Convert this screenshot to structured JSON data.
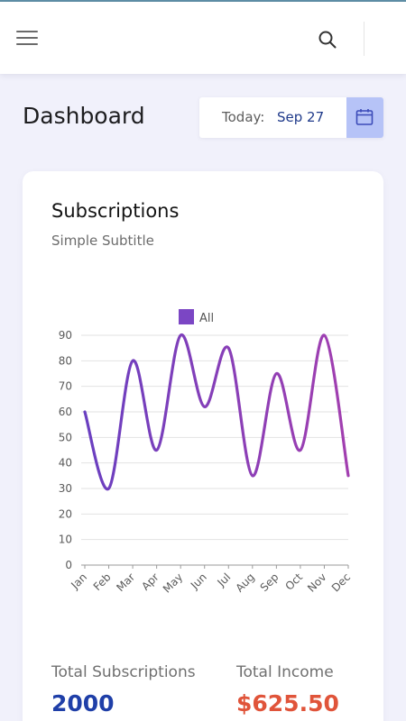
{
  "header": {
    "menu_icon": "hamburger-menu-icon",
    "search_icon": "search-icon"
  },
  "page": {
    "title": "Dashboard",
    "today_label": "Today:",
    "today_value": "Sep 27",
    "calendar_icon": "calendar-icon"
  },
  "card": {
    "title": "Subscriptions",
    "subtitle": "Simple Subtitle"
  },
  "stats": {
    "subscriptions_label": "Total Subscriptions",
    "subscriptions_value": "2000",
    "income_label": "Total Income",
    "income_value": "$625.50"
  },
  "colors": {
    "accent": "#7b46c4",
    "line_start": "#6a3fc0",
    "line_end": "#a23fb0",
    "calendar_bg": "#b6c3f7",
    "subs_value": "#1f3fa8",
    "income_value": "#e0543a"
  },
  "chart_data": {
    "type": "line",
    "categories": [
      "Jan",
      "Feb",
      "Mar",
      "Apr",
      "May",
      "Jun",
      "Jul",
      "Aug",
      "Sep",
      "Oct",
      "Nov",
      "Dec"
    ],
    "series": [
      {
        "name": "All",
        "values": [
          60,
          30,
          80,
          45,
          90,
          62,
          85,
          35,
          75,
          45,
          90,
          35
        ]
      }
    ],
    "yticks": [
      0,
      10,
      20,
      30,
      40,
      50,
      60,
      70,
      80,
      90
    ],
    "ylim": [
      0,
      90
    ],
    "grid": true,
    "legend": "top-center",
    "smooth": true
  }
}
